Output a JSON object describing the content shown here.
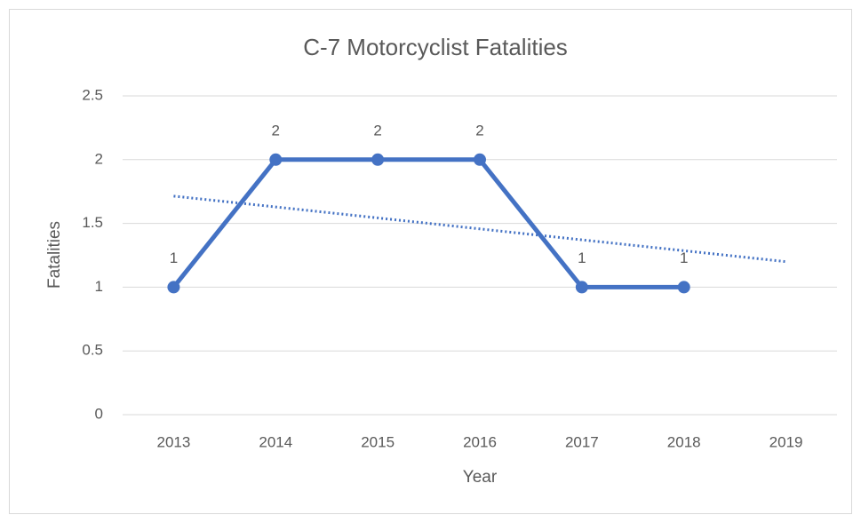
{
  "chart_data": {
    "type": "line",
    "title": "C-7 Motorcyclist Fatalities",
    "x_label": "Year",
    "y_label": "Fatalities",
    "categories": [
      "2013",
      "2014",
      "2015",
      "2016",
      "2017",
      "2018",
      "2019"
    ],
    "series": [
      {
        "name": "Fatalities",
        "color": "#4472c4",
        "values": [
          1,
          2,
          2,
          2,
          1,
          1,
          null
        ]
      }
    ],
    "trendline": {
      "color": "#4472c4",
      "values": [
        1.714,
        1.629,
        1.543,
        1.457,
        1.371,
        1.286,
        1.2
      ]
    },
    "ylim": [
      0,
      2.5
    ],
    "yticks": [
      0,
      0.5,
      1,
      1.5,
      2,
      2.5
    ],
    "grid": true
  }
}
